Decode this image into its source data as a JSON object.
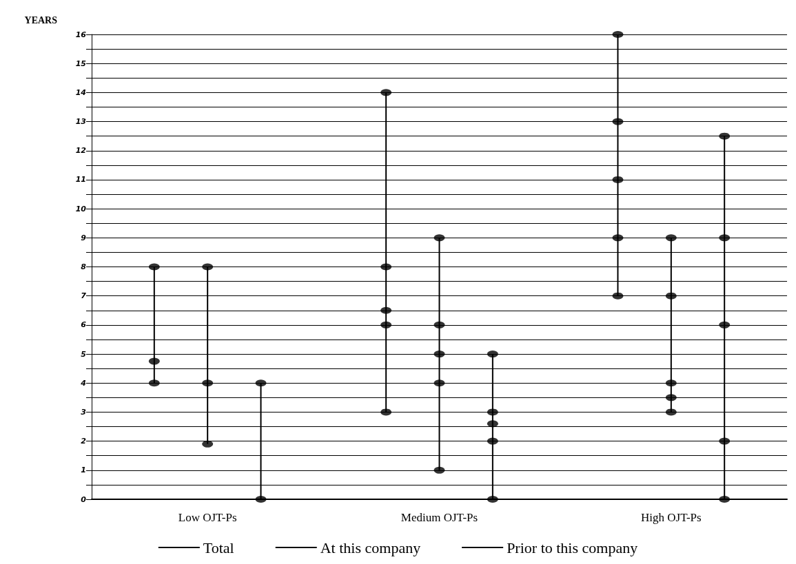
{
  "chart_data": {
    "type": "bar",
    "ylabel": "YEARS",
    "categories": [
      "Low OJT-Ps",
      "Medium OJT-Ps",
      "High OJT-Ps"
    ],
    "series": [
      {
        "name": "Total",
        "color": "#000000",
        "base": [
          4,
          3,
          7
        ],
        "values": [
          4,
          11,
          9
        ]
      },
      {
        "name": "At this company",
        "color": "#000000",
        "base": [
          1.9,
          1,
          3
        ],
        "values": [
          6.1,
          8,
          6
        ]
      },
      {
        "name": "Prior to this company",
        "color": "#000000",
        "base": [
          0,
          0,
          0
        ],
        "values": [
          4,
          5,
          12.5
        ]
      },
      {
        "type": "scatter",
        "color": "#000000",
        "x": [
          "Low OJT-Ps",
          "Low OJT-Ps",
          "Low OJT-Ps",
          "Medium OJT-Ps",
          "Medium OJT-Ps",
          "Medium OJT-Ps",
          "Medium OJT-Ps",
          "Medium OJT-Ps",
          "High OJT-Ps",
          "High OJT-Ps",
          "High OJT-Ps",
          "High OJT-Ps",
          "High OJT-Ps"
        ],
        "values": [
          8,
          4.75,
          4,
          14,
          8,
          6.5,
          6,
          3,
          16,
          13,
          11,
          9,
          7
        ]
      },
      {
        "type": "scatter",
        "color": "#000000",
        "x": [
          "Low OJT-Ps",
          "Low OJT-Ps",
          "Low OJT-Ps",
          "Medium OJT-Ps",
          "Medium OJT-Ps",
          "Medium OJT-Ps",
          "Medium OJT-Ps",
          "Medium OJT-Ps",
          "High OJT-Ps",
          "High OJT-Ps",
          "High OJT-Ps",
          "High OJT-Ps",
          "High OJT-Ps"
        ],
        "values": [
          8,
          4,
          1.9,
          9,
          6,
          5,
          4,
          1,
          9,
          7,
          4,
          3.5,
          3
        ]
      },
      {
        "type": "scatter",
        "color": "#000000",
        "x": [
          "Low OJT-Ps",
          "Low OJT-Ps",
          "Medium OJT-Ps",
          "Medium OJT-Ps",
          "Medium OJT-Ps",
          "Medium OJT-Ps",
          "Medium OJT-Ps",
          "High OJT-Ps",
          "High OJT-Ps",
          "High OJT-Ps",
          "High OJT-Ps",
          "High OJT-Ps"
        ],
        "values": [
          4,
          0,
          5,
          3,
          2.6,
          2,
          0,
          12.5,
          9,
          6,
          2,
          0
        ]
      }
    ],
    "ylim": [
      0,
      16
    ],
    "yticks": [
      0,
      {
        "value": 0.5,
        "label": null
      },
      1,
      {
        "value": 1.5,
        "label": null
      },
      2,
      {
        "value": 2.5,
        "label": null
      },
      3,
      {
        "value": 3.5,
        "label": null
      },
      4,
      {
        "value": 4.5,
        "label": null
      },
      5,
      {
        "value": 5.5,
        "label": null
      },
      6,
      {
        "value": 6.5,
        "label": null
      },
      7,
      {
        "value": 7.5,
        "label": null
      },
      8,
      {
        "value": 8.5,
        "label": null
      },
      9,
      {
        "value": 9.5,
        "label": null
      },
      10,
      {
        "value": 10.5,
        "label": null
      },
      11,
      {
        "value": 11.5,
        "label": null
      },
      12,
      {
        "value": 12.5,
        "label": null
      },
      13,
      {
        "value": 13.5,
        "label": null
      },
      14,
      {
        "value": 14.5,
        "label": null
      },
      15,
      {
        "value": 15.5,
        "label": null
      },
      16
    ],
    "grid": "y",
    "legend": "bottom",
    "marker": "circle"
  }
}
